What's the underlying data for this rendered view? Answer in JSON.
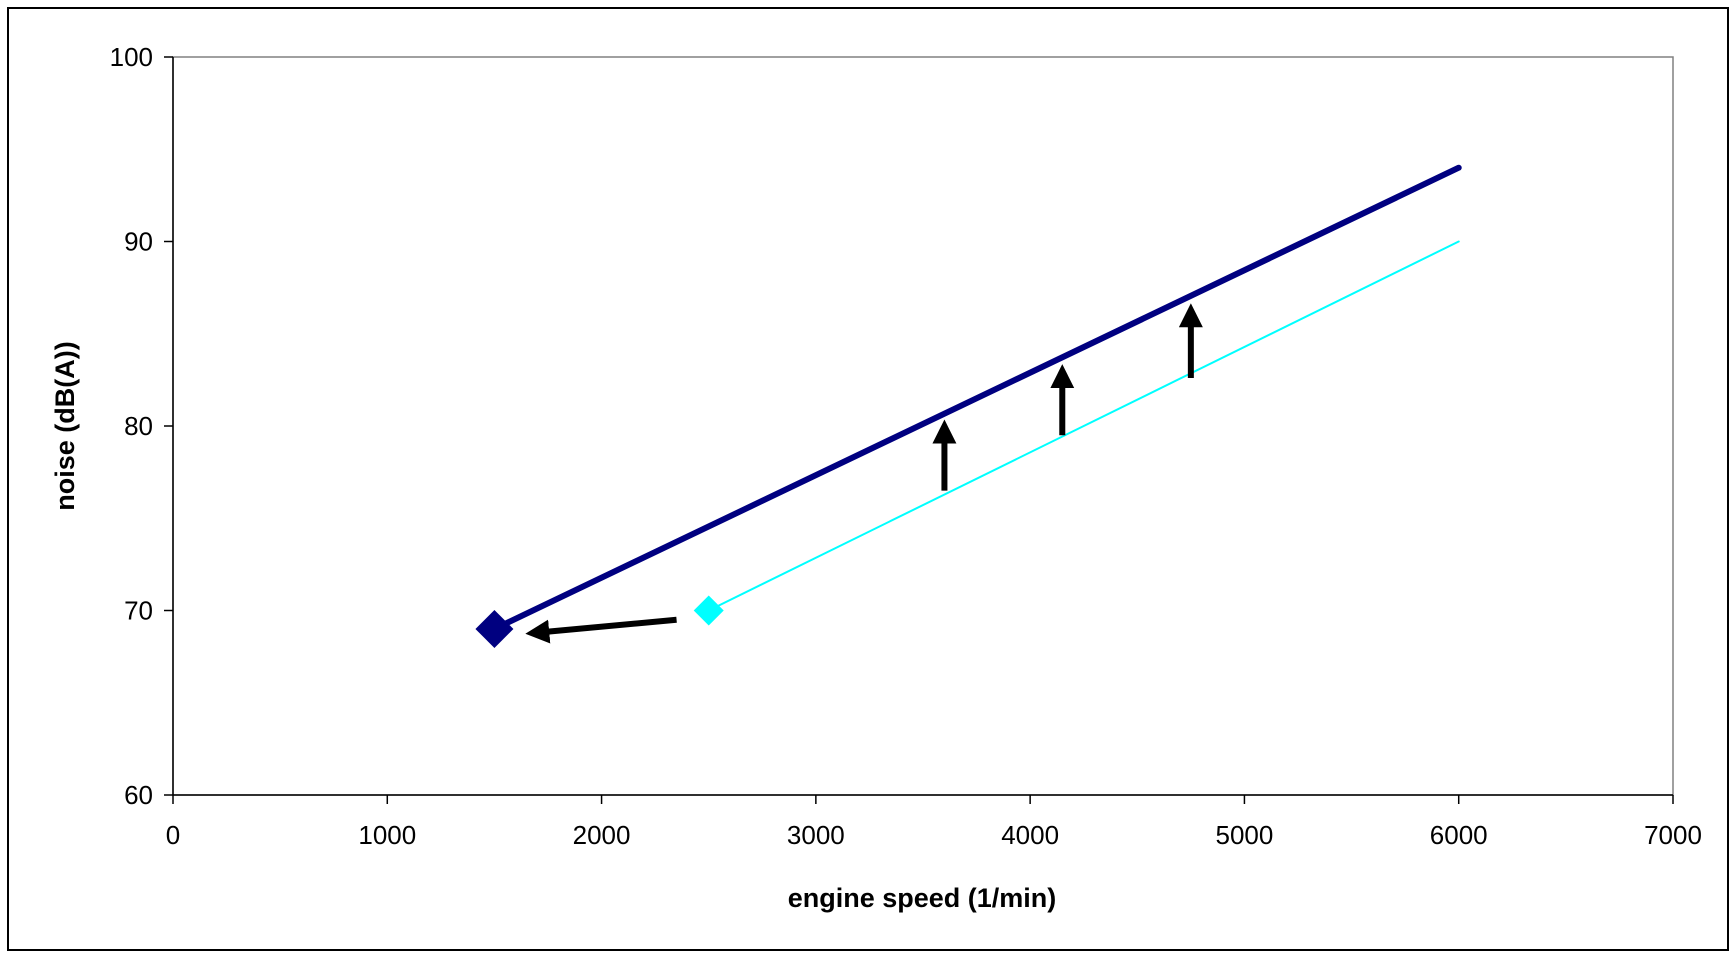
{
  "chart_data": {
    "type": "line",
    "title": "",
    "xlabel": "engine speed (1/min)",
    "ylabel": "noise (dB(A))",
    "xlim": [
      0,
      7000
    ],
    "ylim": [
      60,
      100
    ],
    "x_ticks": [
      "0",
      "1000",
      "2000",
      "3000",
      "4000",
      "5000",
      "6000",
      "7000"
    ],
    "y_ticks": [
      "60",
      "70",
      "80",
      "90",
      "100"
    ],
    "grid": false,
    "legend": "none",
    "series": [
      {
        "color": "#000080",
        "line_style": "thick",
        "marker": "diamond",
        "marker_at_start": true,
        "points": [
          [
            1500,
            69
          ],
          [
            6000,
            94
          ]
        ]
      },
      {
        "color": "#00FFFF",
        "line_style": "thin",
        "marker": "diamond",
        "marker_at_start": true,
        "points": [
          [
            2500,
            70
          ],
          [
            6000,
            90
          ]
        ]
      }
    ],
    "annotations": [
      {
        "type": "arrow",
        "color": "#000000",
        "from": [
          2350,
          69.5
        ],
        "to": [
          1700,
          68.8
        ]
      },
      {
        "type": "arrow",
        "color": "#000000",
        "from": [
          3600,
          76.5
        ],
        "to": [
          3600,
          79.7
        ]
      },
      {
        "type": "arrow",
        "color": "#000000",
        "from": [
          4150,
          79.5
        ],
        "to": [
          4150,
          82.7
        ]
      },
      {
        "type": "arrow",
        "color": "#000000",
        "from": [
          4750,
          82.6
        ],
        "to": [
          4750,
          86
        ]
      }
    ]
  }
}
